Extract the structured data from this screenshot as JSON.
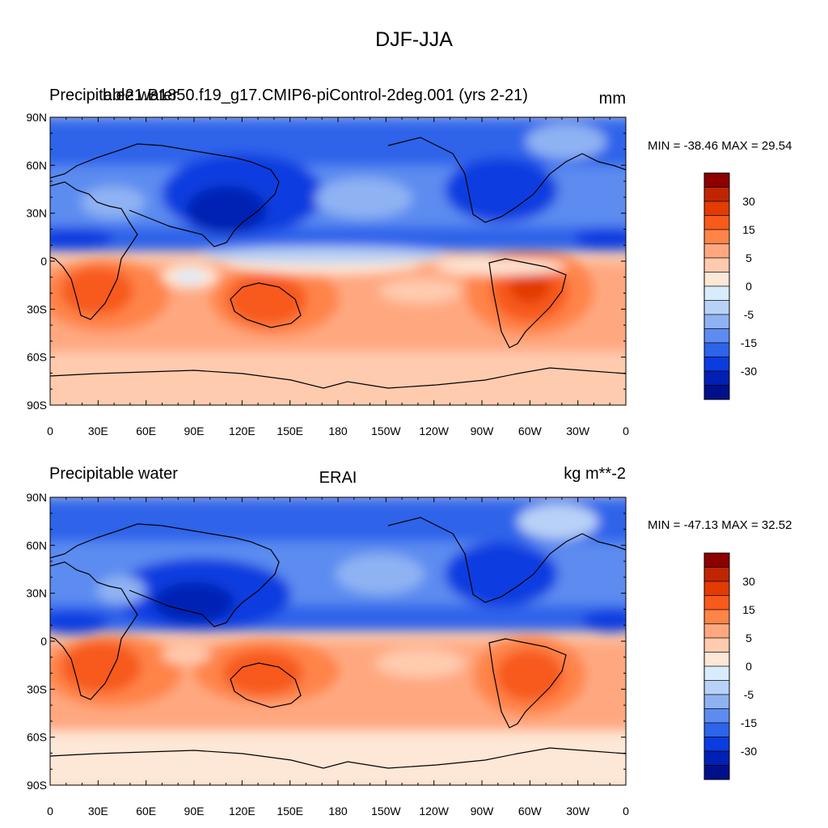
{
  "figure": {
    "title": "DJF-JJA"
  },
  "colorbar": {
    "colors": [
      "#8c0000",
      "#bf2600",
      "#e33b00",
      "#f75a1a",
      "#ff8448",
      "#ffa880",
      "#ffcbaf",
      "#fde7d6",
      "#d9ecfb",
      "#b8d1f6",
      "#8fb2f3",
      "#5c8cf0",
      "#2d64ea",
      "#0b3ce0",
      "#0020b4",
      "#00108a"
    ],
    "labels": [
      {
        "text": "30",
        "after_box": 1
      },
      {
        "text": "15",
        "after_box": 3
      },
      {
        "text": "5",
        "after_box": 5
      },
      {
        "text": "0",
        "after_box": 7
      },
      {
        "text": "-5",
        "after_box": 9
      },
      {
        "text": "-15",
        "after_box": 11
      },
      {
        "text": "-30",
        "after_box": 13
      }
    ]
  },
  "chart_data": [
    {
      "type": "contour-map",
      "title_left": "Precipitable water",
      "title_overlap": "b.e21.B1850.f19_g17.CMIP6-piControl-2deg.001 (yrs 2-21)",
      "title_center": "",
      "title_right": "mm",
      "stats": "MIN = -38.46 MAX =  29.54",
      "min": -38.46,
      "max": 29.54,
      "xticks": [
        "0",
        "30E",
        "60E",
        "90E",
        "120E",
        "150E",
        "180",
        "150W",
        "120W",
        "90W",
        "60W",
        "30W",
        "0"
      ],
      "yticks": [
        "90N",
        "60N",
        "30N",
        "0",
        "30S",
        "60S",
        "90S"
      ]
    },
    {
      "type": "contour-map",
      "title_left": "Precipitable water",
      "title_overlap": "",
      "title_center": "ERAI",
      "title_right": "kg m**-2",
      "stats": "MIN = -47.13 MAX =  32.52",
      "min": -47.13,
      "max": 32.52,
      "xticks": [
        "0",
        "30E",
        "60E",
        "90E",
        "120E",
        "150E",
        "180",
        "150W",
        "120W",
        "90W",
        "60W",
        "30W",
        "0"
      ],
      "yticks": [
        "90N",
        "60N",
        "30N",
        "0",
        "30S",
        "60S",
        "90S"
      ]
    }
  ]
}
